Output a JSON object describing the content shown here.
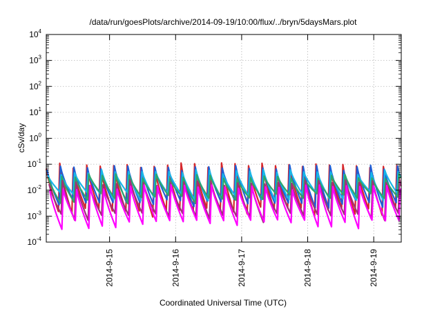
{
  "chart_data": {
    "type": "line",
    "title": "/data/run/goesPlots/archive/2014-09-19/10:00/flux/../bryn/5daysMars.plot",
    "xlabel": "Coordinated Universal Time (UTC)",
    "ylabel": "cSv/day",
    "yscale": "log",
    "ylim": [
      0.0001,
      10000
    ],
    "xlim": [
      "2014-09-14 01:00",
      "2014-09-19 10:00"
    ],
    "grid": true,
    "y_ticks": [
      {
        "base": "10",
        "exp": "-4",
        "value": 0.0001
      },
      {
        "base": "10",
        "exp": "-3",
        "value": 0.001
      },
      {
        "base": "10",
        "exp": "-2",
        "value": 0.01
      },
      {
        "base": "10",
        "exp": "-1",
        "value": 0.1
      },
      {
        "base": "10",
        "exp": "0",
        "value": 1
      },
      {
        "base": "10",
        "exp": "1",
        "value": 10
      },
      {
        "base": "10",
        "exp": "2",
        "value": 100
      },
      {
        "base": "10",
        "exp": "3",
        "value": 1000
      },
      {
        "base": "10",
        "exp": "4",
        "value": 10000
      }
    ],
    "x_ticks": [
      "2014-9-15",
      "2014-9-16",
      "2014-9-17",
      "2014-9-18",
      "2014-9-19"
    ],
    "period_hours": 4.9,
    "series": [
      {
        "color": "#d6262b",
        "peak": 0.09,
        "trough": 0.0015
      },
      {
        "color": "#1f5fd6",
        "peak": 0.075,
        "trough": 0.003
      },
      {
        "color": "#18b7e8",
        "peak": 0.05,
        "trough": 0.006
      },
      {
        "color": "#2fa66b",
        "peak": 0.035,
        "trough": 0.005
      },
      {
        "color": "#a0307a",
        "peak": 0.02,
        "trough": 0.0009
      },
      {
        "color": "#ff00ff",
        "peak": 0.013,
        "trough": 0.0005
      }
    ]
  }
}
